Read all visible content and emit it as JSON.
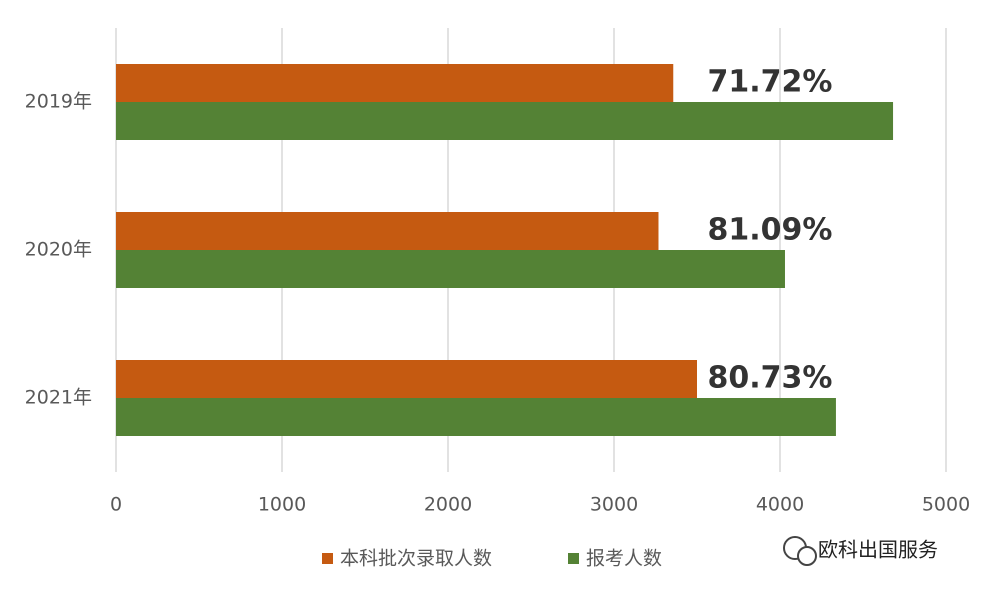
{
  "chart_data": {
    "type": "hbar",
    "categories": [
      "2019年",
      "2020年",
      "2021年"
    ],
    "series": [
      {
        "name": "本科批次录取人数",
        "color": "#c55a11",
        "values": [
          3357,
          3268,
          3500
        ]
      },
      {
        "name": "报考人数",
        "color": "#548235",
        "values": [
          4681,
          4030,
          4337
        ]
      }
    ],
    "annotations": [
      "71.72%",
      "81.09%",
      "80.73%"
    ],
    "xlim": [
      0,
      5000
    ],
    "xticks": [
      0,
      1000,
      2000,
      3000,
      4000,
      5000
    ],
    "grid": true,
    "legend": "bottom",
    "watermark": "欧科出国服务"
  }
}
